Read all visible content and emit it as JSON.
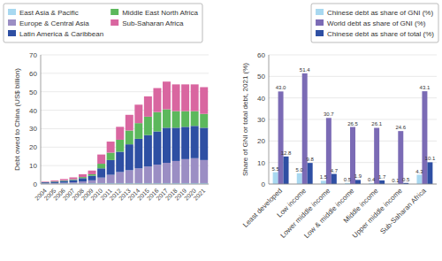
{
  "chart_data": [
    {
      "type": "bar",
      "stacked": true,
      "categories": [
        "2004",
        "2005",
        "2006",
        "2007",
        "2008",
        "2009",
        "2010",
        "2011",
        "2012",
        "2013",
        "2014",
        "2015",
        "2016",
        "2017",
        "2018",
        "2019",
        "2020",
        "2021"
      ],
      "series": [
        {
          "name": "East Asia & Pacific",
          "color": "#a8d8f0",
          "values": [
            0.2,
            0.2,
            0.3,
            0.3,
            0.4,
            0.5,
            0.5,
            0.5,
            0.5,
            0.5,
            0.5,
            0.5,
            0.5,
            0.5,
            0.5,
            0.5,
            0.5,
            0.5
          ]
        },
        {
          "name": "Europe & Central Asia",
          "color": "#9b8ec4",
          "values": [
            0.2,
            0.3,
            0.4,
            0.6,
            1.0,
            1.5,
            3.0,
            4.5,
            6.0,
            7.0,
            8.0,
            9.0,
            10.0,
            11.0,
            12.0,
            13.0,
            13.5,
            12.5
          ]
        },
        {
          "name": "Latin America & Caribbean",
          "color": "#2e4fa3",
          "values": [
            0.5,
            0.7,
            1.0,
            1.3,
            1.8,
            2.5,
            5.0,
            8.0,
            11.0,
            14.0,
            16.0,
            17.0,
            18.0,
            19.0,
            18.0,
            17.5,
            17.5,
            17.5
          ]
        },
        {
          "name": "Middle East North Africa",
          "color": "#5cb85c",
          "values": [
            0.1,
            0.2,
            0.3,
            0.4,
            0.6,
            0.8,
            2.5,
            4.0,
            6.5,
            7.5,
            8.5,
            10.0,
            10.5,
            10.0,
            9.0,
            8.5,
            8.0,
            7.5
          ]
        },
        {
          "name": "Sub-Saharan Africa",
          "color": "#d966a0",
          "values": [
            0.3,
            0.5,
            0.7,
            1.0,
            1.5,
            2.0,
            5.0,
            6.0,
            7.0,
            8.5,
            10.0,
            11.0,
            13.0,
            15.0,
            14.5,
            14.5,
            14.5,
            14.5
          ]
        }
      ],
      "y_label": "Debt owed to China (US$ billion)",
      "ylim": [
        0,
        70
      ],
      "yticks": [
        0,
        10,
        20,
        30,
        40,
        50,
        60,
        70
      ],
      "grid": true,
      "legend": "top-left"
    },
    {
      "type": "bar",
      "data_labels": true,
      "categories": [
        "Least developed",
        "Low income",
        "Lower middle income",
        "Low & middle income",
        "Middle income",
        "Upper middle income",
        "Sub-Saharan Africa"
      ],
      "series": [
        {
          "name": "Chinese debt as share of GNI (%)",
          "color": "#a8d8f0",
          "values": [
            5.5,
            5.0,
            1.5,
            0.5,
            0.4,
            0.1,
            4.3
          ],
          "value_labels": [
            "5.5",
            "5.0",
            "1.5",
            "0.5",
            "0.4",
            "0.1",
            "4.3"
          ]
        },
        {
          "name": "World debt as share of GNI (%)",
          "color": "#7b6bb5",
          "values": [
            43.0,
            51.4,
            30.7,
            26.5,
            26.1,
            24.6,
            43.1
          ],
          "value_labels": [
            "43.0",
            "51.4",
            "30.7",
            "26.5",
            "26.1",
            "24.6",
            "43.1"
          ]
        },
        {
          "name": "Chinese debt as share of total (%)",
          "color": "#2e4fa3",
          "values": [
            12.8,
            9.8,
            4.7,
            1.9,
            1.7,
            0.5,
            10.1
          ],
          "value_labels": [
            "12.8",
            "9.8",
            "4.7",
            "1.9",
            "1.7",
            "0.5",
            "10.1"
          ]
        }
      ],
      "y_label": "Share of GNI or total debt, 2021 (%)",
      "ylim": [
        0,
        60
      ],
      "yticks": [
        0,
        10,
        20,
        30,
        40,
        50,
        60
      ],
      "grid": true,
      "legend": "top-right"
    }
  ]
}
